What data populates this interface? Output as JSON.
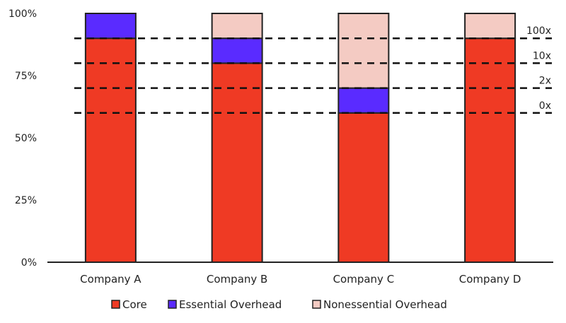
{
  "chart_data": {
    "type": "bar",
    "stacked": true,
    "categories": [
      "Company A",
      "Company B",
      "Company C",
      "Company D"
    ],
    "series": [
      {
        "name": "Core",
        "color": "#ef3a24",
        "values": [
          90,
          80,
          60,
          90
        ]
      },
      {
        "name": "Essential Overhead",
        "color": "#5a2bff",
        "values": [
          10,
          10,
          10,
          0
        ]
      },
      {
        "name": "Nonessential Overhead",
        "color": "#f4cbc3",
        "values": [
          0,
          10,
          30,
          10
        ]
      }
    ],
    "y_ticks": [
      {
        "value": 0,
        "label": "0%"
      },
      {
        "value": 25,
        "label": "25%"
      },
      {
        "value": 50,
        "label": "50%"
      },
      {
        "value": 75,
        "label": "75%"
      },
      {
        "value": 100,
        "label": "100%"
      }
    ],
    "ylim": [
      0,
      100
    ],
    "reference_lines": [
      {
        "value": 90,
        "label": "100x"
      },
      {
        "value": 80,
        "label": "10x"
      },
      {
        "value": 70,
        "label": "2x"
      },
      {
        "value": 60,
        "label": "0x"
      }
    ],
    "legend": [
      "Core",
      "Essential Overhead",
      "Nonessential Overhead"
    ],
    "legend_position": "bottom"
  }
}
